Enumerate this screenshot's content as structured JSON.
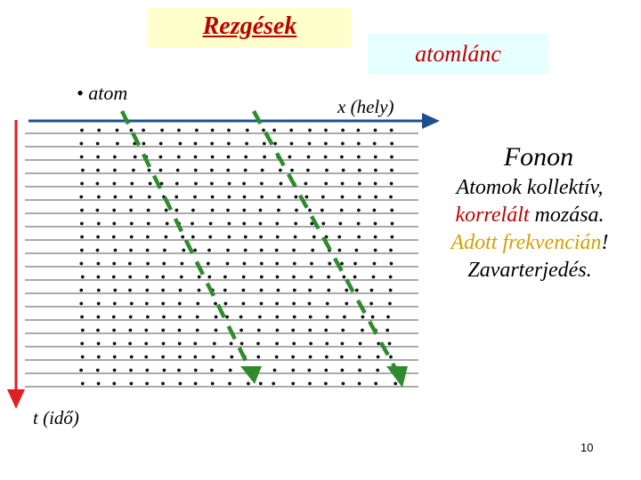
{
  "slide": {
    "title": "Rezgések",
    "chain_label": "atomlánc",
    "atom_legend_bullet": "•",
    "atom_legend": "atom",
    "x_axis_label": "x (hely)",
    "t_axis_label": "t (idő)",
    "heading": "Fonon",
    "line1": "Atomok kollektív,",
    "line2_red": "korrelált",
    "line2_rest": " mozása.",
    "line3_gold": "Adott frekvencián",
    "line3_rest": "!",
    "line4": "Zavarterjedés.",
    "page_number": "10"
  },
  "colors": {
    "title_text": "#c00000",
    "title_bg": "#ffffcc",
    "chain_bg": "#e6ffff",
    "x_arrow": "#1f4e8c",
    "t_arrow": "#e02020",
    "wave_lines": "#2e8b2e",
    "highlight_red": "#c00000",
    "highlight_gold": "#d4a000"
  }
}
